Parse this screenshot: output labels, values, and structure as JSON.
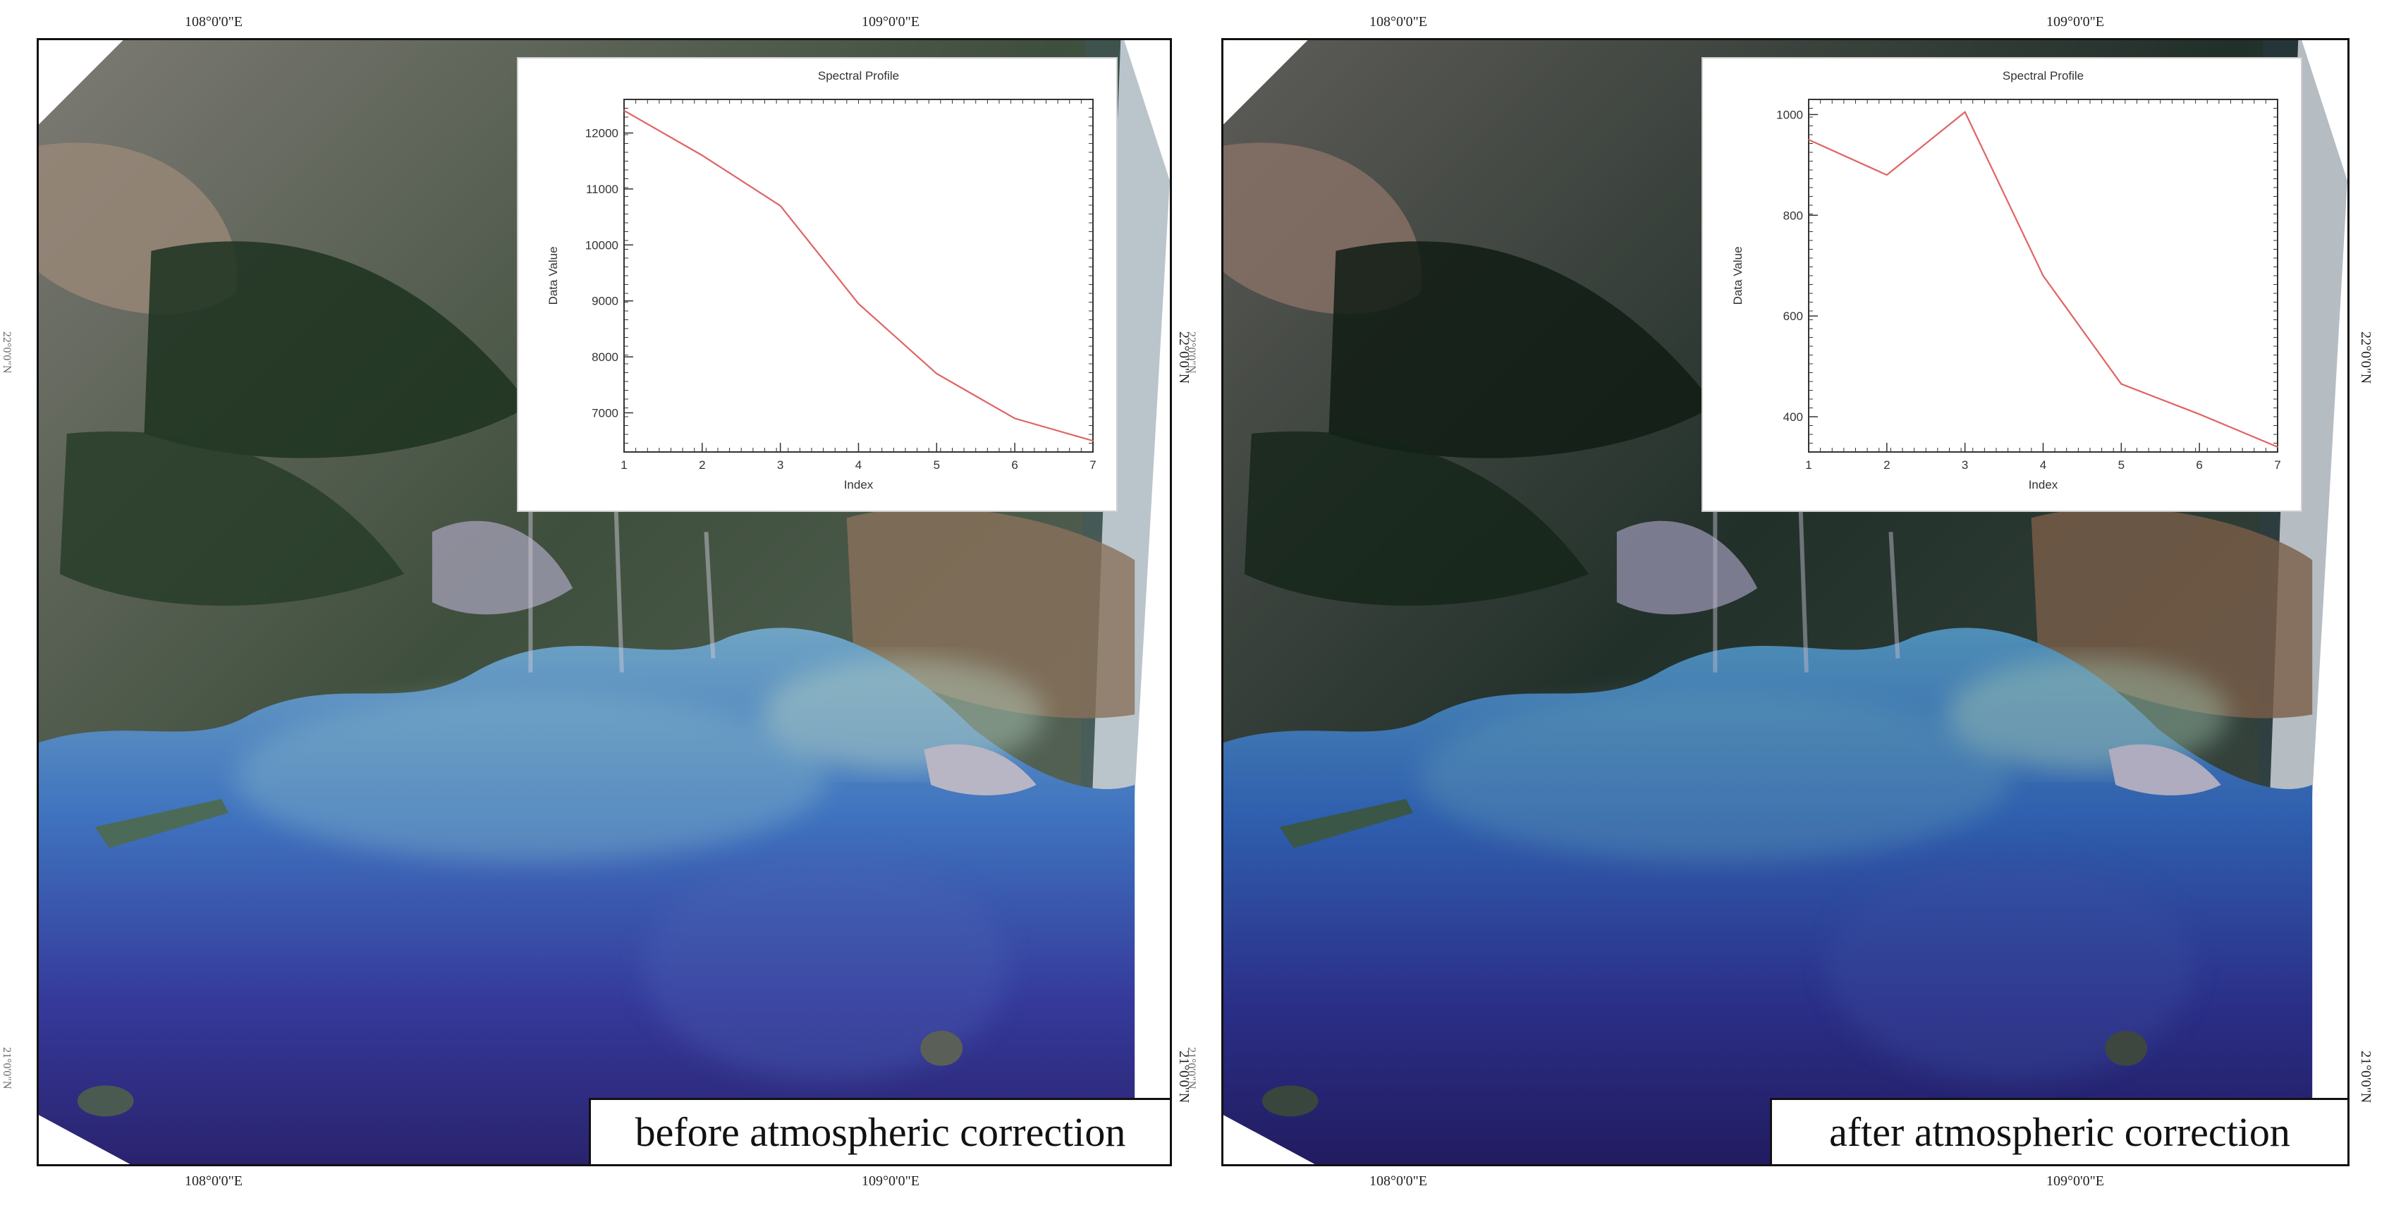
{
  "panels": [
    {
      "caption": "before atmospheric correction",
      "coords": {
        "top_left": "108°0'0\"E",
        "top_right": "109°0'0\"E",
        "bottom_left": "108°0'0\"E",
        "bottom_right": "109°0'0\"E",
        "right_upper": "22°0'0\"N",
        "right_lower": "21°0'0\"N",
        "left_upper": "22°0'0\"N",
        "left_lower": "21°0'0\"N"
      }
    },
    {
      "caption": "after atmospheric correction",
      "coords": {
        "top_left": "108°0'0\"E",
        "top_right": "109°0'0\"E",
        "bottom_left": "108°0'0\"E",
        "bottom_right": "109°0'0\"E",
        "right_upper": "22°0'0\"N",
        "right_lower": "21°0'0\"N",
        "left_upper": "22°0'0\"N",
        "left_lower": "21°0'0\"N"
      }
    }
  ],
  "colors": {
    "line": "#e06464",
    "sea_deep": "#2d2a78",
    "sea_mid": "#3b67b8",
    "sea_turbid": "#7fb3c4",
    "land_forest": "#243a26",
    "land_urban": "#8a8a98"
  },
  "chart_data": [
    {
      "type": "line",
      "title": "Spectral Profile",
      "xlabel": "Index",
      "ylabel": "Data Value",
      "x": [
        1,
        2,
        3,
        4,
        5,
        6,
        7
      ],
      "xticks": [
        1,
        2,
        3,
        4,
        5,
        6,
        7
      ],
      "xlim": [
        1,
        7
      ],
      "series": [
        {
          "values": [
            12400,
            11600,
            10700,
            8950,
            7700,
            6900,
            6500
          ]
        }
      ],
      "ylim": [
        6300,
        12600
      ],
      "yticks": [
        7000,
        8000,
        9000,
        10000,
        11000,
        12000
      ],
      "grid": false
    },
    {
      "type": "line",
      "title": "Spectral Profile",
      "xlabel": "Index",
      "ylabel": "Data Value",
      "x": [
        1,
        2,
        3,
        4,
        5,
        6,
        7
      ],
      "xticks": [
        1,
        2,
        3,
        4,
        5,
        6,
        7
      ],
      "xlim": [
        1,
        7
      ],
      "series": [
        {
          "values": [
            950,
            880,
            1005,
            680,
            465,
            405,
            340
          ]
        }
      ],
      "ylim": [
        330,
        1030
      ],
      "yticks": [
        400,
        600,
        800,
        1000
      ],
      "grid": false
    }
  ]
}
